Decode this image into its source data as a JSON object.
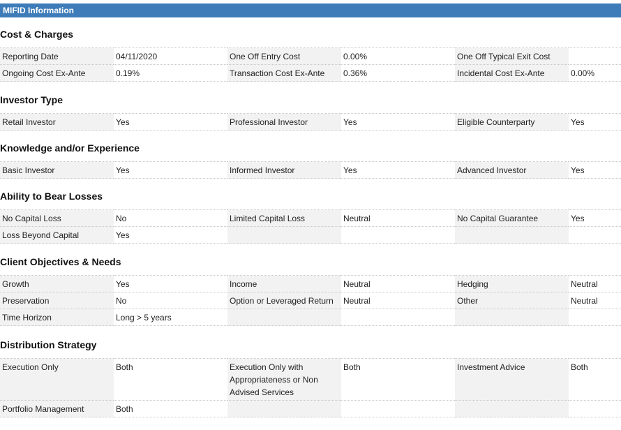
{
  "header": {
    "title": "MIFID Information"
  },
  "sections": [
    {
      "title": "Cost & Charges",
      "rows": [
        [
          [
            "Reporting Date",
            "04/11/2020"
          ],
          [
            "One Off Entry Cost",
            "0.00%"
          ],
          [
            "One Off Typical Exit Cost",
            ""
          ]
        ],
        [
          [
            "Ongoing Cost Ex-Ante",
            "0.19%"
          ],
          [
            "Transaction Cost Ex-Ante",
            "0.36%"
          ],
          [
            "Incidental Cost Ex-Ante",
            "0.00%"
          ]
        ]
      ]
    },
    {
      "title": "Investor Type",
      "rows": [
        [
          [
            "Retail Investor",
            "Yes"
          ],
          [
            "Professional Investor",
            "Yes"
          ],
          [
            "Eligible Counterparty",
            "Yes"
          ]
        ]
      ]
    },
    {
      "title": "Knowledge and/or Experience",
      "rows": [
        [
          [
            "Basic Investor",
            "Yes"
          ],
          [
            "Informed Investor",
            "Yes"
          ],
          [
            "Advanced Investor",
            "Yes"
          ]
        ]
      ]
    },
    {
      "title": "Ability to Bear Losses",
      "rows": [
        [
          [
            "No Capital Loss",
            "No"
          ],
          [
            "Limited Capital Loss",
            "Neutral"
          ],
          [
            "No Capital Guarantee",
            "Yes"
          ]
        ],
        [
          [
            "Loss Beyond Capital",
            "Yes"
          ],
          [
            "",
            ""
          ],
          [
            "",
            ""
          ]
        ]
      ]
    },
    {
      "title": "Client Objectives & Needs",
      "rows": [
        [
          [
            "Growth",
            "Yes"
          ],
          [
            "Income",
            "Neutral"
          ],
          [
            "Hedging",
            "Neutral"
          ]
        ],
        [
          [
            "Preservation",
            "No"
          ],
          [
            "Option or Leveraged Return",
            "Neutral"
          ],
          [
            "Other",
            "Neutral"
          ]
        ],
        [
          [
            "Time Horizon",
            "Long > 5 years"
          ],
          [
            "",
            ""
          ],
          [
            "",
            ""
          ]
        ]
      ]
    },
    {
      "title": "Distribution Strategy",
      "rows": [
        [
          [
            "Execution Only",
            "Both"
          ],
          [
            "Execution Only with Appropriateness or Non Advised Services",
            "Both"
          ],
          [
            "Investment Advice",
            "Both"
          ]
        ],
        [
          [
            "Portfolio Management",
            "Both"
          ],
          [
            "",
            ""
          ],
          [
            "",
            ""
          ]
        ]
      ]
    }
  ]
}
